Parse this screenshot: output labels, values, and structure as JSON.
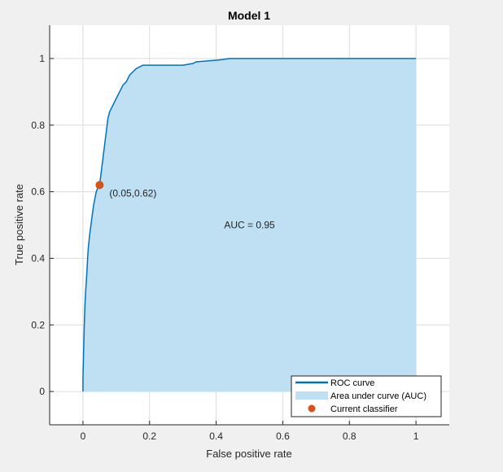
{
  "chart_data": {
    "type": "line",
    "title": "Model 1",
    "xlabel": "False positive rate",
    "ylabel": "True positive rate",
    "xlim": [
      -0.1,
      1.1
    ],
    "ylim": [
      -0.1,
      1.1
    ],
    "xticks": [
      0,
      0.2,
      0.4,
      0.6,
      0.8,
      1
    ],
    "yticks": [
      0,
      0.2,
      0.4,
      0.6,
      0.8,
      1
    ],
    "xtick_labels": [
      "0",
      "0.2",
      "0.4",
      "0.6",
      "0.8",
      "1"
    ],
    "ytick_labels": [
      "0",
      "0.2",
      "0.4",
      "0.6",
      "0.8",
      "1"
    ],
    "grid": true,
    "legend_position": "bottom-right",
    "colors": {
      "roc": "#0072BD",
      "auc_fill": "#BFDFF2",
      "classifier": "#D95319"
    },
    "series": [
      {
        "name": "ROC curve",
        "x": [
          0,
          0,
          0.002,
          0.004,
          0.006,
          0.008,
          0.01,
          0.012,
          0.014,
          0.016,
          0.02,
          0.024,
          0.028,
          0.032,
          0.036,
          0.04,
          0.044,
          0.05,
          0.055,
          0.06,
          0.065,
          0.07,
          0.075,
          0.08,
          0.085,
          0.09,
          0.1,
          0.11,
          0.12,
          0.13,
          0.14,
          0.15,
          0.16,
          0.17,
          0.18,
          0.2,
          0.25,
          0.3,
          0.33,
          0.34,
          0.4,
          0.42,
          0.44,
          0.5,
          0.6,
          0.8,
          1
        ],
        "y": [
          0,
          0.04,
          0.12,
          0.2,
          0.26,
          0.3,
          0.33,
          0.36,
          0.4,
          0.43,
          0.47,
          0.5,
          0.53,
          0.56,
          0.58,
          0.6,
          0.61,
          0.62,
          0.66,
          0.7,
          0.74,
          0.78,
          0.82,
          0.84,
          0.85,
          0.86,
          0.88,
          0.9,
          0.92,
          0.93,
          0.95,
          0.96,
          0.97,
          0.975,
          0.98,
          0.98,
          0.98,
          0.98,
          0.985,
          0.99,
          0.995,
          0.997,
          1,
          1,
          1,
          1,
          1
        ]
      }
    ],
    "auc": {
      "name": "Area under curve (AUC)",
      "label": "AUC = 0.95",
      "label_x": 0.5,
      "label_y": 0.5
    },
    "current_classifier": {
      "name": "Current classifier",
      "x": 0.05,
      "y": 0.62,
      "label": "(0.05,0.62)"
    }
  }
}
